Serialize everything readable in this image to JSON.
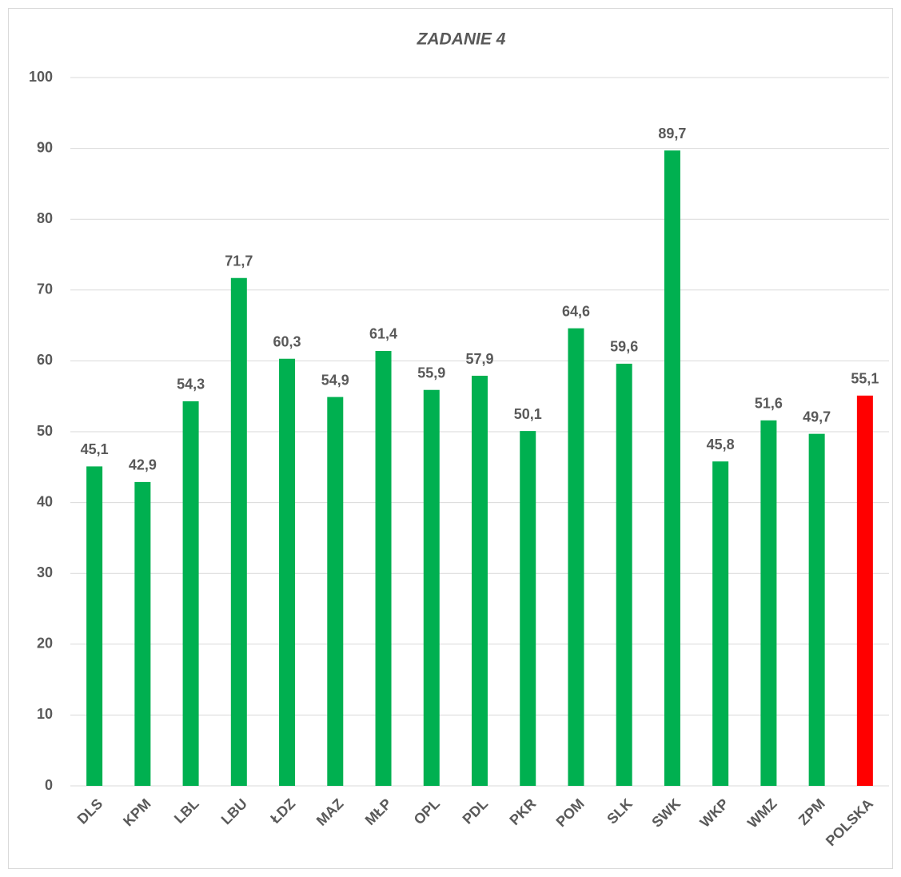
{
  "chart_data": {
    "type": "bar",
    "title": "ZADANIE 4",
    "categories": [
      "DLS",
      "KPM",
      "LBL",
      "LBU",
      "ŁDZ",
      "MAZ",
      "MŁP",
      "OPL",
      "PDL",
      "PKR",
      "POM",
      "SLK",
      "SWK",
      "WKP",
      "WMZ",
      "ZPM",
      "POLSKA"
    ],
    "values": [
      45.1,
      42.9,
      54.3,
      71.7,
      60.3,
      54.9,
      61.4,
      55.9,
      57.9,
      50.1,
      64.6,
      59.6,
      89.7,
      45.8,
      51.6,
      49.7,
      55.1
    ],
    "value_labels": [
      "45,1",
      "42,9",
      "54,3",
      "71,7",
      "60,3",
      "54,9",
      "61,4",
      "55,9",
      "57,9",
      "50,1",
      "64,6",
      "59,6",
      "89,7",
      "45,8",
      "51,6",
      "49,7",
      "55,1"
    ],
    "colors": [
      "#00b050",
      "#00b050",
      "#00b050",
      "#00b050",
      "#00b050",
      "#00b050",
      "#00b050",
      "#00b050",
      "#00b050",
      "#00b050",
      "#00b050",
      "#00b050",
      "#00b050",
      "#00b050",
      "#00b050",
      "#00b050",
      "#ff0000"
    ],
    "ylim": [
      0,
      100
    ],
    "yticks": [
      0,
      10,
      20,
      30,
      40,
      50,
      60,
      70,
      80,
      90,
      100
    ],
    "grid": true
  }
}
